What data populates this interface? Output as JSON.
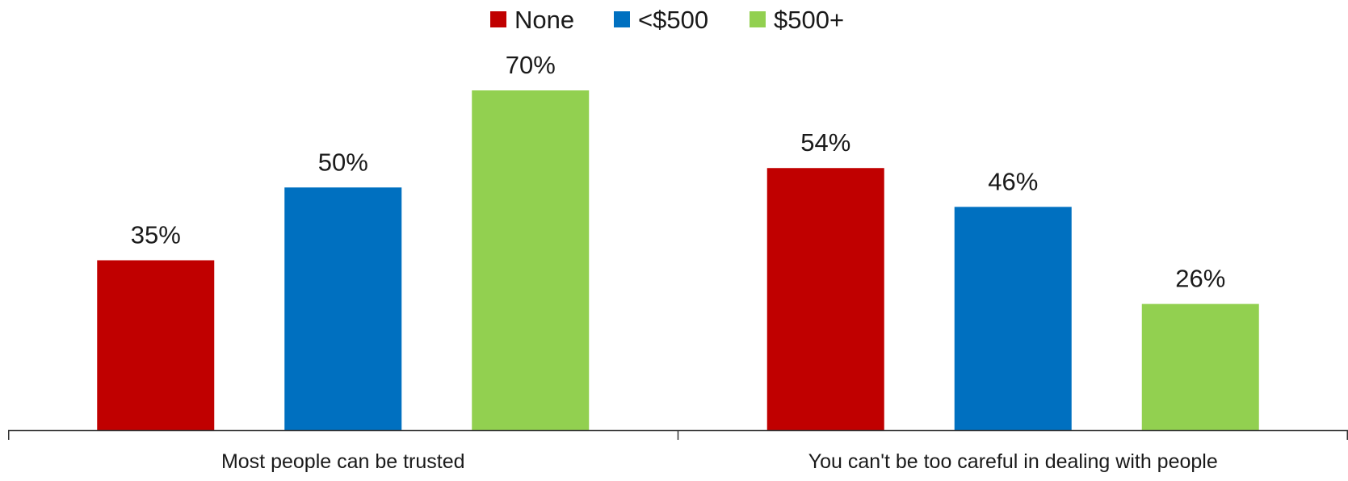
{
  "chart_data": {
    "type": "bar",
    "categories": [
      "Most people can be trusted",
      "You can't be too careful in dealing with people"
    ],
    "series": [
      {
        "name": "None",
        "values": [
          35,
          54
        ],
        "color": "#C00000",
        "labels": [
          "35%",
          "54%"
        ]
      },
      {
        "name": "<$500",
        "values": [
          50,
          46
        ],
        "color": "#0070C0",
        "labels": [
          "50%",
          "46%"
        ]
      },
      {
        "name": "$500+",
        "values": [
          70,
          26
        ],
        "color": "#92D050",
        "labels": [
          "70%",
          "26%"
        ]
      }
    ],
    "value_format": "percent",
    "ylim": [
      0,
      70
    ],
    "grid": false,
    "legend_position": "top-center",
    "title": "",
    "xlabel": "",
    "ylabel": ""
  }
}
